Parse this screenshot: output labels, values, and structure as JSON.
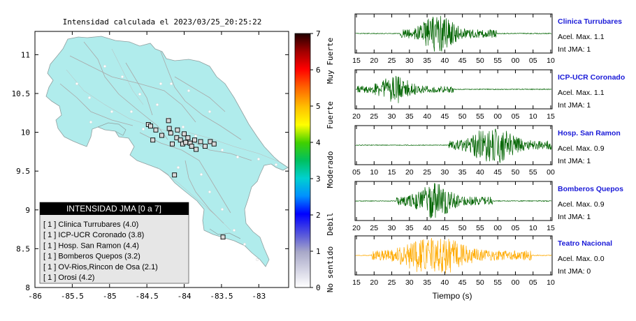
{
  "map": {
    "title": "Intensidad calculada el 2023/03/25_20:25:22",
    "x_ticks": [
      "-86",
      "-85.5",
      "-85",
      "-84.5",
      "-84",
      "-83.5",
      "-83"
    ],
    "y_ticks": [
      "11",
      "10.5",
      "10",
      "9.5",
      "9",
      "8.5",
      "8"
    ],
    "legend": {
      "header": "INTENSIDAD JMA [0 a 7]",
      "rows": [
        "[ 1 ]  Clinica Turrubares (4.0)",
        "[ 1 ]  ICP-UCR Coronado (3.8)",
        "[ 1 ]  Hosp. San Ramon (4.4)",
        "[ 1 ]  Bomberos Quepos (3.2)",
        "[ 1 ]  OV-Rios,Rincon de Osa (2.1)",
        "[ 1 ]  Orosi (4.2)"
      ]
    },
    "colors": {
      "land": "#b0ecec",
      "border": "#a0a0a0",
      "frame": "#000000"
    }
  },
  "colorbar": {
    "ticks": [
      "0",
      "1",
      "2",
      "3",
      "4",
      "5",
      "6",
      "7"
    ],
    "labels": [
      "No sentido",
      "Debil",
      "Moderado",
      "Fuerte",
      "Muy Fuerte"
    ]
  },
  "traces_header": {
    "xlabel": "Tiempo (s)"
  },
  "traces": [
    {
      "station": "Clinica Turrubares",
      "acel": "Acel. Max. 1.1",
      "jma": "Int JMA: 1",
      "ticks": [
        "15",
        "20",
        "25",
        "30",
        "35",
        "40",
        "45",
        "50",
        "55",
        "00",
        "05",
        "10"
      ],
      "color": "#006400"
    },
    {
      "station": "ICP-UCR Coronado",
      "acel": "Acel. Max. 1.1",
      "jma": "Int JMA: 1",
      "ticks": [
        "20",
        "25",
        "30",
        "35",
        "40",
        "45",
        "50",
        "55",
        "00",
        "05",
        "10",
        "15"
      ],
      "color": "#006400"
    },
    {
      "station": "Hosp. San Ramon",
      "acel": "Acel. Max. 0.9",
      "jma": "Int JMA: 1",
      "ticks": [
        "05",
        "10",
        "15",
        "20",
        "25",
        "30",
        "35",
        "40",
        "45",
        "50",
        "55",
        "00"
      ],
      "color": "#006400"
    },
    {
      "station": "Bomberos Quepos",
      "acel": "Acel. Max. 0.9",
      "jma": "Int JMA: 1",
      "ticks": [
        "20",
        "25",
        "30",
        "35",
        "40",
        "45",
        "50",
        "55",
        "00",
        "05",
        "10",
        "15"
      ],
      "color": "#006400"
    },
    {
      "station": "Teatro Nacional",
      "acel": "Acel. Max. 0.0",
      "jma": "Int JMA: 0",
      "ticks": [
        "15",
        "20",
        "25",
        "30",
        "35",
        "40",
        "45",
        "50",
        "55",
        "00",
        "05",
        "10"
      ],
      "color": "#ffaa00"
    }
  ],
  "chart_data": [
    {
      "type": "scatter",
      "title": "Intensidad calculada el 2023/03/25_20:25:22",
      "xlim": [
        -86,
        -82.6
      ],
      "ylim": [
        8,
        11.3
      ],
      "x_ticks": [
        -86,
        -85.5,
        -85,
        -84.5,
        -84,
        -83.5,
        -83
      ],
      "y_ticks": [
        8,
        8.5,
        9,
        9.5,
        10,
        10.5,
        11
      ],
      "points": [
        [
          -84.48,
          10.1
        ],
        [
          -84.45,
          10.08
        ],
        [
          -84.42,
          9.9
        ],
        [
          -84.38,
          10.03
        ],
        [
          -84.3,
          9.96
        ],
        [
          -84.21,
          10.15
        ],
        [
          -84.2,
          10.05
        ],
        [
          -84.18,
          9.99
        ],
        [
          -84.16,
          9.85
        ],
        [
          -84.1,
          9.93
        ],
        [
          -84.09,
          10.03
        ],
        [
          -84.05,
          9.9
        ],
        [
          -84.02,
          9.85
        ],
        [
          -84.0,
          9.98
        ],
        [
          -83.98,
          9.87
        ],
        [
          -83.95,
          9.93
        ],
        [
          -83.92,
          9.86
        ],
        [
          -83.9,
          9.82
        ],
        [
          -83.86,
          9.9
        ],
        [
          -83.84,
          9.78
        ],
        [
          -83.78,
          9.88
        ],
        [
          -83.72,
          9.82
        ],
        [
          -83.65,
          9.88
        ],
        [
          -83.6,
          9.85
        ],
        [
          -84.13,
          9.45
        ],
        [
          -83.48,
          8.65
        ]
      ]
    },
    {
      "type": "heatmap",
      "title": "Intensidad JMA",
      "range": [
        0,
        7
      ],
      "ticks": [
        0,
        1,
        2,
        3,
        4,
        5,
        6,
        7
      ],
      "labels": [
        "No sentido",
        "Debil",
        "Moderado",
        "Fuerte",
        "Muy Fuerte"
      ]
    }
  ]
}
